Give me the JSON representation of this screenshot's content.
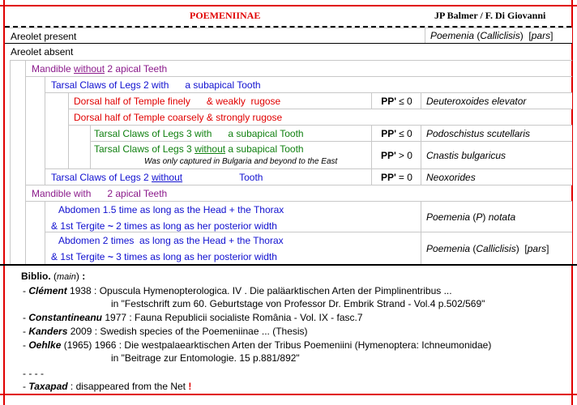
{
  "header": {
    "title": "POEMENIINAE",
    "authors": "JP Balmer / F. Di Giovanni"
  },
  "key": {
    "areolet_present": {
      "text": "Areolet present",
      "genus": "Poemenia",
      "subgenus": "Calliclisis",
      "note": "pars"
    },
    "areolet_absent": {
      "text": "Areolet absent"
    },
    "mandible_without": {
      "a": "Mandible ",
      "u": "without",
      "b": " 2 apical Teeth"
    },
    "tarsal2_with": {
      "text": "Tarsal Claws of Legs 2 with      a subapical Tooth"
    },
    "dorsal_finely": {
      "text": "Dorsal half of Temple finely      & weakly  rugose",
      "pp": "PP'",
      "sym": "≤ 0",
      "species": "Deuteroxoides elevator"
    },
    "dorsal_coarsely": {
      "text": "Dorsal half of Temple coarsely & strongly rugose"
    },
    "tarsal3_with": {
      "text": "Tarsal Claws of Legs 3 with      a subapical Tooth",
      "pp": "PP'",
      "sym": "≤ 0",
      "species": "Podoschistus scutellaris"
    },
    "tarsal3_without": {
      "a": "Tarsal Claws of Legs 3 ",
      "u": "without",
      "b": " a subapical Tooth",
      "note": "Was only captured in Bulgaria and beyond to the East",
      "pp": "PP'",
      "sym": "> 0",
      "species": "Cnastis bulgaricus"
    },
    "tarsal2_without": {
      "a": "Tarsal Claws of Legs 2 ",
      "u": "without",
      "b": "Tooth",
      "pp": "PP'",
      "sym": "= 0",
      "species": "Neoxorides"
    },
    "mandible_with": {
      "text": "Mandible with      2 apical Teeth"
    },
    "abdomen_15": {
      "line1": "Abdomen 1.5 time as long as the Head + the Thorax",
      "line2a": "& 1st Tergite ",
      "tilde": "~",
      "line2b": " 2 times as long as her posterior width",
      "genus": "Poemenia",
      "subgenus": "P",
      "species": "notata"
    },
    "abdomen_2": {
      "line1": "Abdomen 2 times  as long as the Head + the Thorax",
      "line2a": "& 1st Tergite ",
      "tilde": "~",
      "line2b": " 3 times as long as her posterior width",
      "genus": "Poemenia",
      "subgenus": "Calliclisis",
      "note": "pars"
    }
  },
  "biblio": {
    "label": "Biblio.",
    "main": "main",
    "entries": [
      {
        "author": "Clément",
        "text": " 1938 : Opuscula Hymenopterologica. IV . Die paläarktischen Arten der Pimplinentribus ...",
        "cont": "in \"Festschrift zum 60. Geburtstage von Professor Dr. Embrik Strand - Vol.4 p.502/569\""
      },
      {
        "author": "Constantineanu",
        "text": " 1977 : Fauna Republicii socialiste România - Vol. IX - fasc.7"
      },
      {
        "author": "Kanders",
        "text": " 2009 : Swedish species of the Poemeniinae ... (Thesis)"
      },
      {
        "author": "Oehlke",
        "text": " (1965) 1966 : Die westpalaearktischen Arten der Tribus Poemeniini (Hymenoptera: Ichneumonidae)",
        "cont": "in \"Beitrage zur Entomologie. 15 p.881/892\""
      }
    ],
    "separator": "- - - -",
    "taxapad": {
      "author": "Taxapad",
      "text": " : disappeared from the Net ",
      "excl": "!"
    }
  }
}
